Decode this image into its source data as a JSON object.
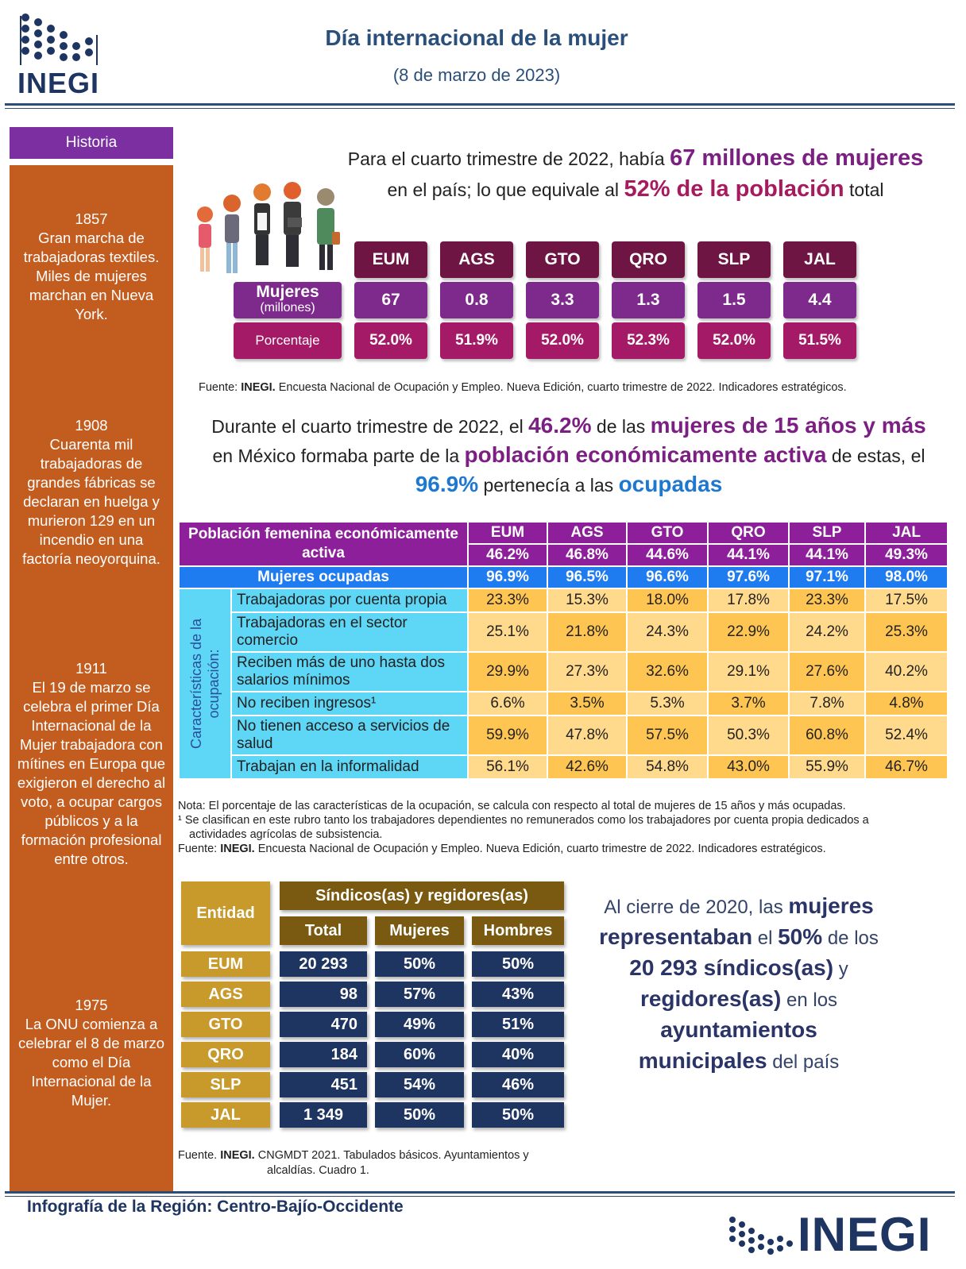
{
  "header": {
    "logo_text": "INEGI",
    "title": "Día internacional de la mujer",
    "subtitle": "(8 de marzo de 2023)"
  },
  "sidebar": {
    "title": "Historia",
    "events": [
      {
        "year": "1857",
        "text": "Gran marcha de trabajadoras textiles. Miles de mujeres marchan en Nueva York."
      },
      {
        "year": "1908",
        "text": "Cuarenta mil trabajadoras de grandes fábricas se declaran en huelga y murieron 129 en un incendio en una factoría neoyorquina."
      },
      {
        "year": "1911",
        "text": "El 19 de marzo se celebra el primer Día Internacional de la Mujer trabajadora con mítines en Europa que exigieron el derecho al voto, a ocupar cargos públicos y a la formación profesional entre otros."
      },
      {
        "year": "1975",
        "text": "La ONU comienza a celebrar el 8 de marzo como el Día Internacional de la Mujer."
      }
    ]
  },
  "section1": {
    "t1": "Para el cuarto trimestre de 2022, había ",
    "h1": "67 millones de mujeres",
    "t2": "en el país; lo que equivale al ",
    "h2": "52% de la población",
    "t3": " total",
    "row_mujeres_label": "Mujeres",
    "row_mujeres_sub": "(millones)",
    "row_pct_label": "Porcentaje",
    "entities": [
      "EUM",
      "AGS",
      "GTO",
      "QRO",
      "SLP",
      "JAL"
    ],
    "mujeres": [
      "67",
      "0.8",
      "3.3",
      "1.3",
      "1.5",
      "4.4"
    ],
    "porcentaje": [
      "52.0%",
      "51.9%",
      "52.0%",
      "52.3%",
      "52.0%",
      "51.5%"
    ],
    "source_bold": "INEGI.",
    "source_prefix": "Fuente: ",
    "source_rest": " Encuesta Nacional de Ocupación y Empleo. Nueva Edición, cuarto trimestre de 2022. Indicadores estratégicos."
  },
  "section2": {
    "t1": "Durante el cuarto trimestre de 2022, el ",
    "h1": "46.2%",
    "t2": " de las ",
    "h2": "mujeres de 15 años y más",
    "t3": "en México formaba parte de la ",
    "h3": "población económicamente activa",
    "t4": " de estas, el",
    "h4": "96.9%",
    "t5": " pertenecía a las ",
    "h5": "ocupadas",
    "pea_label": "Población femenina económicamente activa",
    "entities": [
      "EUM",
      "AGS",
      "GTO",
      "QRO",
      "SLP",
      "JAL"
    ],
    "pea_values": [
      "46.2%",
      "46.8%",
      "44.6%",
      "44.1%",
      "44.1%",
      "49.3%"
    ],
    "ocupadas_label": "Mujeres ocupadas",
    "ocupadas_values": [
      "96.9%",
      "96.5%",
      "96.6%",
      "97.6%",
      "97.1%",
      "98.0%"
    ],
    "vertical_label": "Características de la ocupación:",
    "rows": [
      {
        "label": "Trabajadoras por cuenta propia",
        "values": [
          "23.3%",
          "15.3%",
          "18.0%",
          "17.8%",
          "23.3%",
          "17.5%"
        ]
      },
      {
        "label": "Trabajadoras en el sector comercio",
        "values": [
          "25.1%",
          "21.8%",
          "24.3%",
          "22.9%",
          "24.2%",
          "25.3%"
        ]
      },
      {
        "label": "Reciben más de uno hasta dos salarios mínimos",
        "values": [
          "29.9%",
          "27.3%",
          "32.6%",
          "29.1%",
          "27.6%",
          "40.2%"
        ]
      },
      {
        "label": "No reciben ingresos¹",
        "values": [
          "6.6%",
          "3.5%",
          "5.3%",
          "3.7%",
          "7.8%",
          "4.8%"
        ]
      },
      {
        "label": "No tienen acceso a servicios de salud",
        "values": [
          "59.9%",
          "47.8%",
          "57.5%",
          "50.3%",
          "60.8%",
          "52.4%"
        ]
      },
      {
        "label": "Trabajan en la informalidad",
        "values": [
          "56.1%",
          "42.6%",
          "54.8%",
          "43.0%",
          "55.9%",
          "46.7%"
        ]
      }
    ],
    "note1": "Nota: El porcentaje de las características de la ocupación, se calcula con respecto al total de mujeres de 15 años y más ocupadas.",
    "note2": "¹ Se clasifican en este rubro tanto los trabajadores dependientes no remunerados como los trabajadores por cuenta propia dedicados a",
    "note2b": "actividades agrícolas de subsistencia.",
    "source_prefix": "Fuente: ",
    "source_bold": "INEGI.",
    "source_rest": " Encuesta Nacional de Ocupación y Empleo. Nueva Edición, cuarto trimestre de 2022. Indicadores estratégicos."
  },
  "section3": {
    "entidad_label": "Entidad",
    "group_label": "Síndicos(as) y regidores(as)",
    "col_total": "Total",
    "col_mujeres": "Mujeres",
    "col_hombres": "Hombres",
    "rows": [
      {
        "entity": "EUM",
        "total": "20 293",
        "mujeres": "50%",
        "hombres": "50%"
      },
      {
        "entity": "AGS",
        "total": "98",
        "mujeres": "57%",
        "hombres": "43%"
      },
      {
        "entity": "GTO",
        "total": "470",
        "mujeres": "49%",
        "hombres": "51%"
      },
      {
        "entity": "QRO",
        "total": "184",
        "mujeres": "60%",
        "hombres": "40%"
      },
      {
        "entity": "SLP",
        "total": "451",
        "mujeres": "54%",
        "hombres": "46%"
      },
      {
        "entity": "JAL",
        "total": "1 349",
        "mujeres": "50%",
        "hombres": "50%"
      }
    ],
    "source_prefix": "Fuente. ",
    "source_bold": "INEGI.",
    "source_rest": " CNGMDT 2021. Tabulados básicos. Ayuntamientos y",
    "source_rest2": "alcaldías. Cuadro 1.",
    "t1": "Al cierre de 2020, las ",
    "h1": "mujeres",
    "h2": "representaban",
    "t2": " el ",
    "h3": "50%",
    "t3": " de los",
    "h4": "20 293 síndicos(as)",
    "t4": " y",
    "h5": "regidores(as)",
    "t5": " en los",
    "h6": "ayuntamientos",
    "h7": "municipales",
    "t6": " del país"
  },
  "footer": {
    "text": "Infografía de la Región: Centro-Bajío-Occidente",
    "logo_text": "INEGI"
  },
  "colors": {
    "brand_blue": "#2a4f7a",
    "sidebar_orange": "#c35d1f",
    "purple": "#7b1f82",
    "navy": "#1e3562"
  }
}
